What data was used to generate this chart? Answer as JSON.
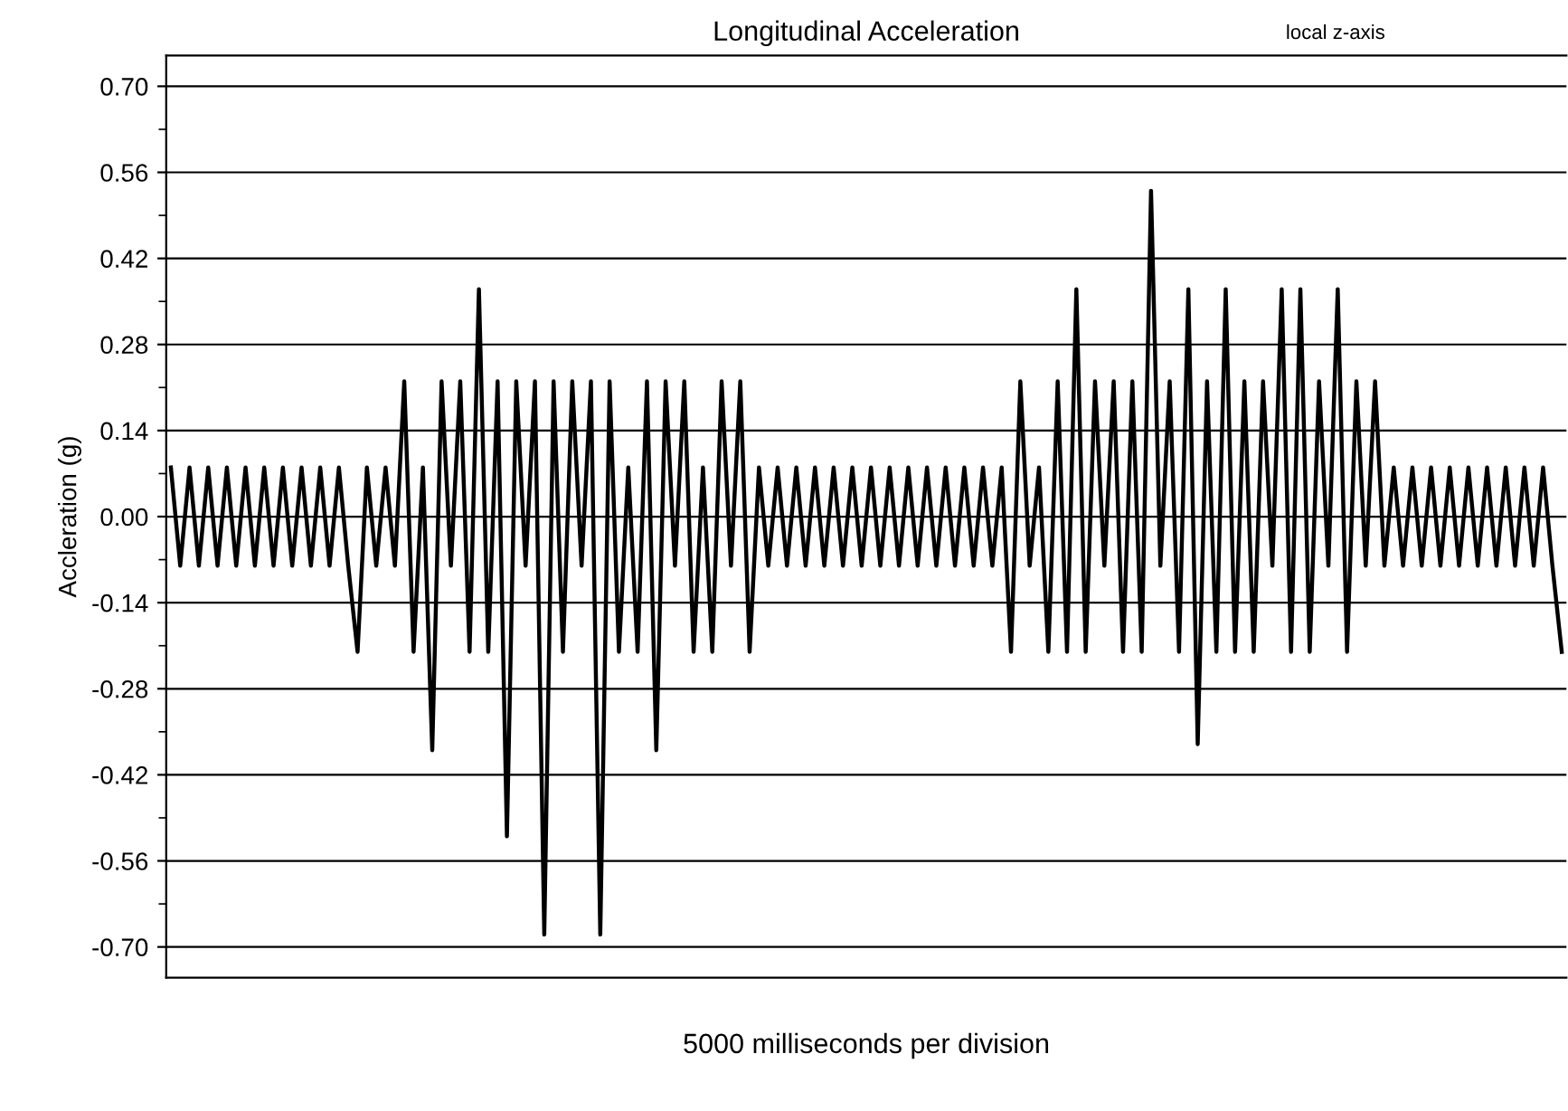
{
  "chart_data": {
    "type": "line",
    "title": "Longitudinal Acceleration",
    "xlabel": "5000 milliseconds per division",
    "ylabel": "Accleration (g)",
    "annotations": [
      "local z-axis"
    ],
    "categories": [
      null,
      null,
      null,
      null,
      null,
      null,
      null,
      null,
      null,
      null,
      null,
      null,
      null,
      null,
      null,
      null,
      null,
      null,
      null,
      null,
      null,
      null,
      null,
      null,
      null,
      null,
      null,
      null,
      null,
      null,
      null,
      null,
      null,
      null,
      null,
      null,
      null,
      null,
      null,
      null,
      null,
      null,
      null,
      null,
      null,
      null,
      null,
      null,
      null,
      null,
      null,
      null,
      null,
      null,
      null,
      null,
      null,
      null,
      null,
      null,
      null,
      null,
      null,
      null,
      null,
      null,
      null,
      null,
      null,
      null,
      null,
      null,
      null,
      null,
      null,
      null,
      null,
      null,
      null,
      null,
      null,
      null,
      null,
      null,
      null,
      null,
      null,
      null,
      null,
      null,
      null,
      null,
      null,
      null,
      null,
      null,
      null,
      null,
      null,
      null,
      null,
      null,
      null,
      null,
      null,
      null,
      null,
      null,
      null,
      null,
      null,
      null,
      null,
      null,
      null,
      null,
      null,
      null,
      null,
      null,
      null,
      null,
      null,
      null,
      null,
      null,
      null,
      null,
      null,
      null,
      null,
      null,
      null,
      null,
      null,
      null,
      null,
      null,
      null,
      null,
      null,
      null,
      null,
      null,
      null,
      null,
      null,
      null,
      null,
      null
    ],
    "series": [
      {
        "color": "#000000",
        "values": [
          0.08,
          -0.08,
          0.08,
          -0.08,
          0.08,
          -0.08,
          0.08,
          -0.08,
          0.08,
          -0.08,
          0.08,
          -0.08,
          0.08,
          -0.08,
          0.08,
          -0.08,
          0.08,
          -0.08,
          0.08,
          -0.08,
          -0.22,
          0.08,
          -0.08,
          0.08,
          -0.08,
          0.22,
          -0.22,
          0.08,
          -0.38,
          0.22,
          -0.08,
          0.22,
          -0.22,
          0.37,
          -0.22,
          0.22,
          -0.52,
          0.22,
          -0.08,
          0.22,
          -0.68,
          0.22,
          -0.22,
          0.22,
          -0.08,
          0.22,
          -0.68,
          0.22,
          -0.22,
          0.08,
          -0.22,
          0.22,
          -0.38,
          0.22,
          -0.08,
          0.22,
          -0.22,
          0.08,
          -0.22,
          0.22,
          -0.08,
          0.22,
          -0.22,
          0.08,
          -0.08,
          0.08,
          -0.08,
          0.08,
          -0.08,
          0.08,
          -0.08,
          0.08,
          -0.08,
          0.08,
          -0.08,
          0.08,
          -0.08,
          0.08,
          -0.08,
          0.08,
          -0.08,
          0.08,
          -0.08,
          0.08,
          -0.08,
          0.08,
          -0.08,
          0.08,
          -0.08,
          0.08,
          -0.22,
          0.22,
          -0.08,
          0.08,
          -0.22,
          0.22,
          -0.22,
          0.37,
          -0.22,
          0.22,
          -0.08,
          0.22,
          -0.22,
          0.22,
          -0.22,
          0.53,
          -0.08,
          0.22,
          -0.22,
          0.37,
          -0.37,
          0.22,
          -0.22,
          0.37,
          -0.22,
          0.22,
          -0.22,
          0.22,
          -0.08,
          0.37,
          -0.22,
          0.37,
          -0.22,
          0.22,
          -0.08,
          0.37,
          -0.22,
          0.22,
          -0.08,
          0.22,
          -0.08,
          0.08,
          -0.08,
          0.08,
          -0.08,
          0.08,
          -0.08,
          0.08,
          -0.08,
          0.08,
          -0.08,
          0.08,
          -0.08,
          0.08,
          -0.08,
          0.08,
          -0.08,
          0.08,
          -0.08,
          -0.22
        ]
      }
    ],
    "ylim": [
      -0.75,
      0.75
    ],
    "yticks": [
      {
        "value": 0.7,
        "label": "0.70"
      },
      {
        "value": 0.56,
        "label": "0.56"
      },
      {
        "value": 0.42,
        "label": "0.42"
      },
      {
        "value": 0.28,
        "label": "0.28"
      },
      {
        "value": 0.14,
        "label": "0.14"
      },
      {
        "value": 0,
        "label": "0.00"
      },
      {
        "value": -0.14,
        "label": "-0.14"
      },
      {
        "value": -0.28,
        "label": "-0.28"
      },
      {
        "value": -0.42,
        "label": "-0.42"
      },
      {
        "value": -0.56,
        "label": "-0.56"
      },
      {
        "value": -0.7,
        "label": "-0.70"
      }
    ],
    "grid": "y",
    "tick_labels": "y",
    "legend": false,
    "marker": "none",
    "line_style": "solid"
  }
}
